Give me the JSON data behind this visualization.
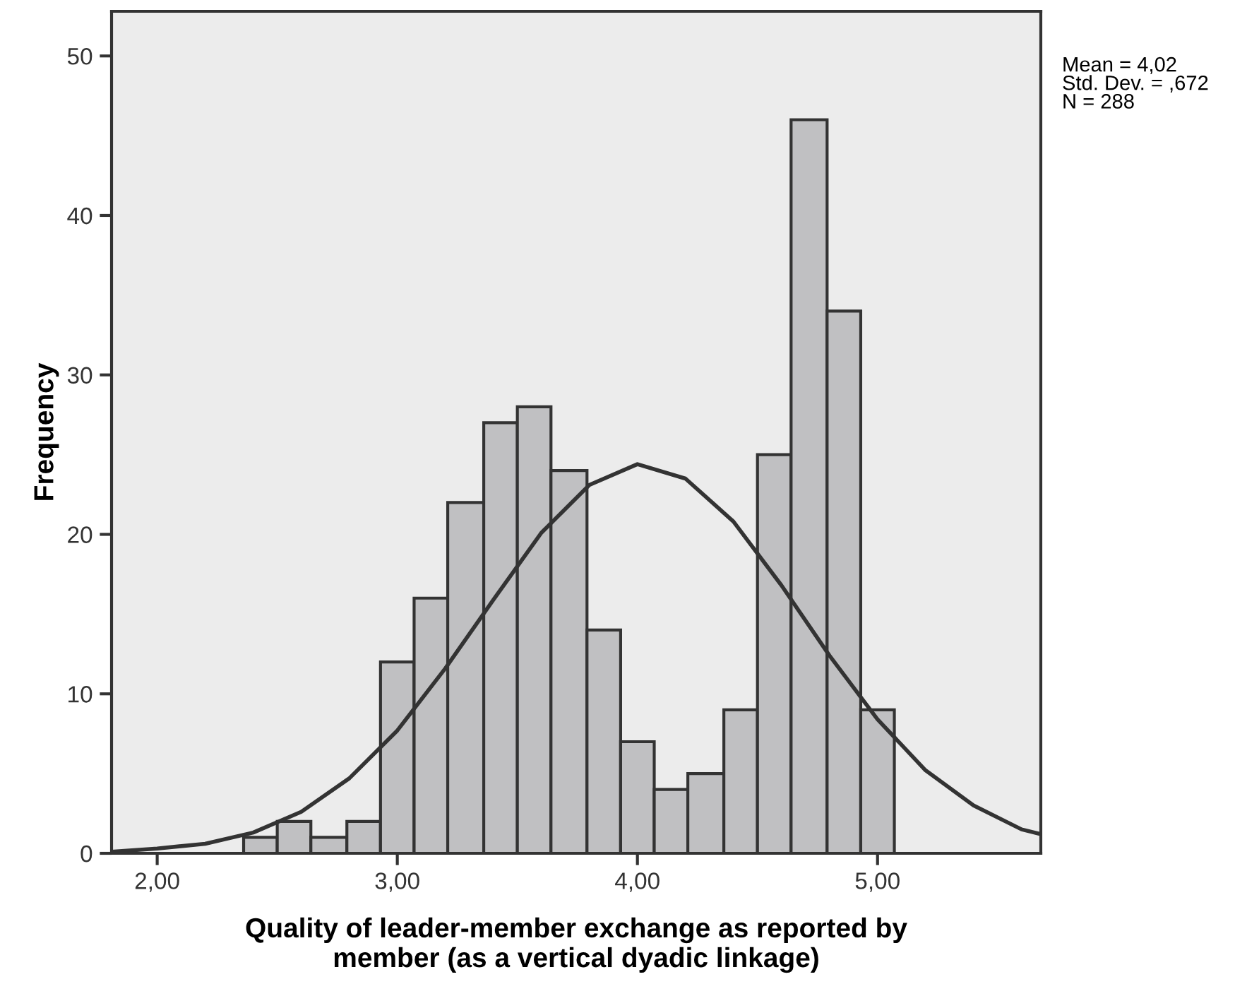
{
  "chart_data": {
    "type": "histogram",
    "xlabel": "Quality of leader-member exchange as reported by\nmember (as a vertical dyadic linkage)",
    "ylabel": "Frequency",
    "annotations": [
      "Mean = 4,02\nStd. Dev. = ,672\nN = 288"
    ],
    "series": [
      {
        "color": "#c0c0c2",
        "bins": [
          2.36,
          2.5,
          2.64,
          2.79,
          2.93,
          3.07,
          3.21,
          3.36,
          3.5,
          3.64,
          3.79,
          3.93,
          4.07,
          4.21,
          4.36,
          4.5,
          4.64,
          4.79,
          4.93,
          5.07
        ],
        "values": [
          1,
          2,
          1,
          2,
          12,
          16,
          22,
          27,
          28,
          24,
          14,
          7,
          4,
          5,
          9,
          25,
          46,
          34,
          9
        ]
      },
      {
        "type": "line",
        "color": "#333333",
        "x": [
          1.81,
          2.0,
          2.2,
          2.4,
          2.6,
          2.8,
          3.0,
          3.2,
          3.4,
          3.6,
          3.8,
          4.0,
          4.2,
          4.4,
          4.6,
          4.8,
          5.0,
          5.2,
          5.4,
          5.6,
          5.68
        ],
        "values": [
          0.1,
          0.3,
          0.6,
          1.3,
          2.6,
          4.7,
          7.7,
          11.6,
          15.9,
          20.1,
          23.1,
          24.4,
          23.5,
          20.8,
          16.8,
          12.4,
          8.4,
          5.2,
          3.0,
          1.5,
          1.2
        ]
      }
    ],
    "xlim": [
      1.81,
      5.68
    ],
    "ylim": [
      0,
      52.8
    ],
    "xticks": [
      {
        "value": 2,
        "label": "2,00"
      },
      {
        "value": 3,
        "label": "3,00"
      },
      {
        "value": 4,
        "label": "4,00"
      },
      {
        "value": 5,
        "label": "5,00"
      }
    ],
    "yticks": [
      0,
      10,
      20,
      30,
      40,
      50
    ],
    "grid": false,
    "legend": false
  }
}
